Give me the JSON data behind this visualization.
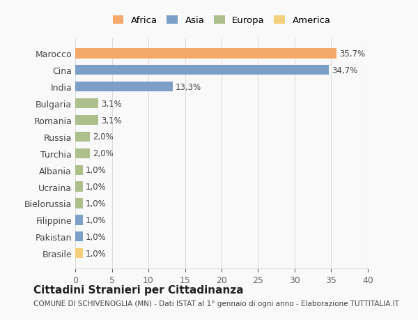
{
  "countries": [
    "Marocco",
    "Cina",
    "India",
    "Bulgaria",
    "Romania",
    "Russia",
    "Turchia",
    "Albania",
    "Ucraina",
    "Bielorussia",
    "Filippine",
    "Pakistan",
    "Brasile"
  ],
  "values": [
    35.7,
    34.7,
    13.3,
    3.1,
    3.1,
    2.0,
    2.0,
    1.0,
    1.0,
    1.0,
    1.0,
    1.0,
    1.0
  ],
  "labels": [
    "35,7%",
    "34,7%",
    "13,3%",
    "3,1%",
    "3,1%",
    "2,0%",
    "2,0%",
    "1,0%",
    "1,0%",
    "1,0%",
    "1,0%",
    "1,0%",
    "1,0%"
  ],
  "continents": [
    "Africa",
    "Asia",
    "Asia",
    "Europa",
    "Europa",
    "Europa",
    "Europa",
    "Europa",
    "Europa",
    "Europa",
    "Asia",
    "Asia",
    "America"
  ],
  "colors": {
    "Africa": "#F4A96A",
    "Asia": "#7B9FC7",
    "Europa": "#ADBF8A",
    "America": "#F5D07A"
  },
  "legend_order": [
    "Africa",
    "Asia",
    "Europa",
    "America"
  ],
  "xlim": [
    0,
    40
  ],
  "xticks": [
    0,
    5,
    10,
    15,
    20,
    25,
    30,
    35,
    40
  ],
  "title": "Cittadini Stranieri per Cittadinanza",
  "subtitle": "COMUNE DI SCHIVENOGLIA (MN) - Dati ISTAT al 1° gennaio di ogni anno - Elaborazione TUTTITALIA.IT",
  "background_color": "#f9f9f9",
  "grid_color": "#dddddd"
}
